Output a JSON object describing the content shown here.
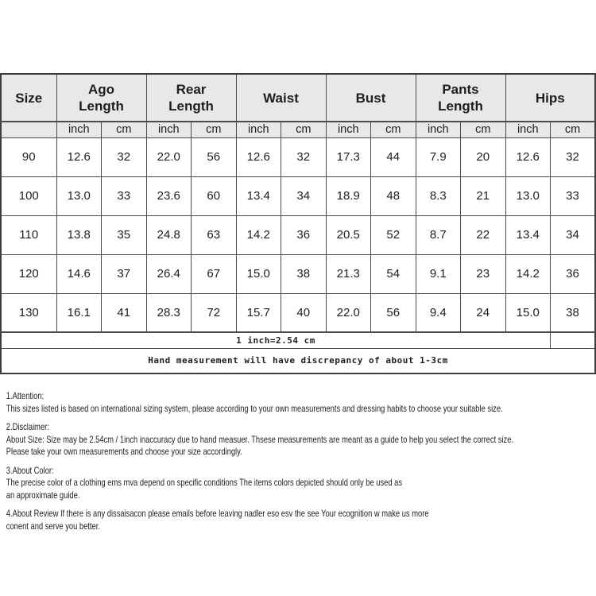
{
  "size_chart": {
    "columns": [
      {
        "label": "Size"
      },
      {
        "label": "Ago Length"
      },
      {
        "label": "Rear Length"
      },
      {
        "label": "Waist"
      },
      {
        "label": "Bust"
      },
      {
        "label": "Pants Length"
      },
      {
        "label": "Hips"
      }
    ],
    "unit_labels": {
      "inch": "inch",
      "cm": "cm"
    },
    "rows": [
      [
        "90",
        "12.6",
        "32",
        "22.0",
        "56",
        "12.6",
        "32",
        "17.3",
        "44",
        "7.9",
        "20",
        "12.6",
        "32"
      ],
      [
        "100",
        "13.0",
        "33",
        "23.6",
        "60",
        "13.4",
        "34",
        "18.9",
        "48",
        "8.3",
        "21",
        "13.0",
        "33"
      ],
      [
        "110",
        "13.8",
        "35",
        "24.8",
        "63",
        "14.2",
        "36",
        "20.5",
        "52",
        "8.7",
        "22",
        "13.4",
        "34"
      ],
      [
        "120",
        "14.6",
        "37",
        "26.4",
        "67",
        "15.0",
        "38",
        "21.3",
        "54",
        "9.1",
        "23",
        "14.2",
        "36"
      ],
      [
        "130",
        "16.1",
        "41",
        "28.3",
        "72",
        "15.7",
        "40",
        "22.0",
        "56",
        "9.4",
        "24",
        "15.0",
        "38"
      ]
    ],
    "footnotes": {
      "conversion": "1 inch=2.54 cm",
      "discrepancy": "Hand measurement will have discrepancy of about 1-3cm"
    }
  },
  "notes": [
    {
      "heading": "1.Attention:",
      "lines": [
        "This sizes listed is based on international sizing system, please according to your own measurements and dressing habits to choose your suitable size."
      ]
    },
    {
      "heading": "2.Disclaimer:",
      "lines": [
        "About Size: Size may be 2.54cm / 1inch inaccuracy due to hand measuer. Thsese measurements are meant as a guide to help you select the correct size.",
        "Please take your own measurements and choose your size accordingly."
      ]
    },
    {
      "heading": "3.About Color:",
      "lines": [
        "The precise color of a clothing ems mva depend on specific conditions The items colors depicted should only be used as",
        "an approximate guide."
      ]
    },
    {
      "heading": "",
      "lines": [
        "4.About Review If there is any dissaisacon please emails before leaving nadler eso esv the see Your ecognition w make us more",
        "conent and serve you better."
      ]
    }
  ],
  "colors": {
    "header_bg": "#e8e8e8",
    "border": "#4b4b4b",
    "text": "#1e1e1e"
  }
}
